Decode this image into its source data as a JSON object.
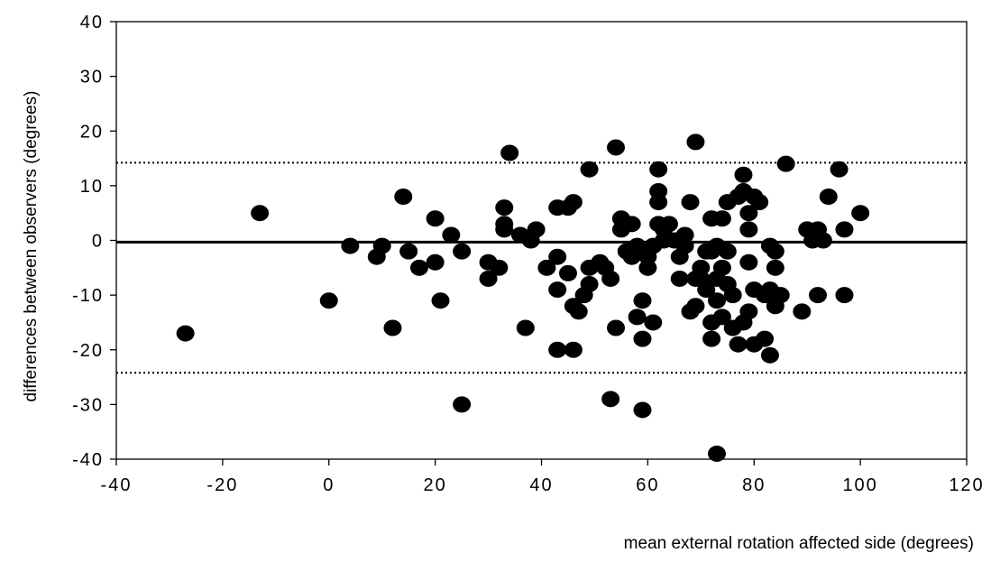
{
  "chart_data": {
    "type": "scatter",
    "xlabel": "mean external rotation affected side (degrees)",
    "ylabel": "differences between observers (degrees)",
    "xlim": [
      -40,
      120
    ],
    "ylim": [
      -40,
      40
    ],
    "x_ticks": [
      -40,
      -20,
      0,
      20,
      40,
      60,
      80,
      100,
      120
    ],
    "y_ticks": [
      -40,
      -30,
      -20,
      -10,
      0,
      10,
      20,
      30,
      40
    ],
    "x_tick_labels": [
      "-40",
      "-20",
      "0",
      "20",
      "40",
      "60",
      "80",
      "100",
      "120"
    ],
    "y_tick_labels": [
      "-40",
      "-30",
      "-20",
      "-10",
      "0",
      "10",
      "20",
      "30",
      "40"
    ],
    "grid": false,
    "legend": "none",
    "mean_line": -0.3,
    "limits_of_agreement": [
      14.2,
      -24.2
    ],
    "marker_color": "#000000",
    "points": [
      [
        -27,
        -17
      ],
      [
        -13,
        5
      ],
      [
        0,
        -11
      ],
      [
        4,
        -1
      ],
      [
        9,
        -3
      ],
      [
        10,
        -1
      ],
      [
        12,
        -16
      ],
      [
        14,
        8
      ],
      [
        15,
        -2
      ],
      [
        17,
        -5
      ],
      [
        20,
        4
      ],
      [
        20,
        -4
      ],
      [
        21,
        -11
      ],
      [
        23,
        1
      ],
      [
        25,
        -2
      ],
      [
        25,
        -30
      ],
      [
        30,
        -4
      ],
      [
        30,
        -7
      ],
      [
        32,
        -5
      ],
      [
        33,
        6
      ],
      [
        33,
        3
      ],
      [
        33,
        2
      ],
      [
        34,
        16
      ],
      [
        36,
        1
      ],
      [
        37,
        -16
      ],
      [
        38,
        0
      ],
      [
        39,
        2
      ],
      [
        41,
        -5
      ],
      [
        43,
        6
      ],
      [
        43,
        -3
      ],
      [
        43,
        -9
      ],
      [
        43,
        -20
      ],
      [
        45,
        6
      ],
      [
        45,
        -6
      ],
      [
        46,
        -20
      ],
      [
        46,
        7
      ],
      [
        46,
        -12
      ],
      [
        47,
        -13
      ],
      [
        48,
        -10
      ],
      [
        49,
        13
      ],
      [
        49,
        -8
      ],
      [
        49,
        -5
      ],
      [
        51,
        -4
      ],
      [
        52,
        -5
      ],
      [
        53,
        -29
      ],
      [
        53,
        -7
      ],
      [
        54,
        -16
      ],
      [
        54,
        17
      ],
      [
        55,
        4
      ],
      [
        55,
        2
      ],
      [
        56,
        -2
      ],
      [
        57,
        -3
      ],
      [
        57,
        3
      ],
      [
        58,
        -14
      ],
      [
        58,
        -1
      ],
      [
        59,
        -11
      ],
      [
        59,
        -18
      ],
      [
        59,
        -31
      ],
      [
        60,
        -3
      ],
      [
        60,
        -5
      ],
      [
        61,
        -15
      ],
      [
        61,
        -1
      ],
      [
        62,
        13
      ],
      [
        62,
        9
      ],
      [
        62,
        7
      ],
      [
        62,
        3
      ],
      [
        63,
        0
      ],
      [
        63,
        2
      ],
      [
        64,
        3
      ],
      [
        65,
        0
      ],
      [
        66,
        -7
      ],
      [
        66,
        -3
      ],
      [
        67,
        1
      ],
      [
        67,
        -1
      ],
      [
        68,
        -13
      ],
      [
        68,
        7
      ],
      [
        69,
        -7
      ],
      [
        69,
        -12
      ],
      [
        69,
        18
      ],
      [
        70,
        -5
      ],
      [
        70,
        -7
      ],
      [
        71,
        -2
      ],
      [
        71,
        -9
      ],
      [
        72,
        4
      ],
      [
        72,
        -2
      ],
      [
        72,
        -15
      ],
      [
        72,
        -18
      ],
      [
        73,
        -7
      ],
      [
        73,
        -11
      ],
      [
        73,
        -1
      ],
      [
        73,
        -39
      ],
      [
        74,
        -14
      ],
      [
        74,
        4
      ],
      [
        74,
        -5
      ],
      [
        75,
        -8
      ],
      [
        75,
        7
      ],
      [
        75,
        -2
      ],
      [
        76,
        -16
      ],
      [
        76,
        -10
      ],
      [
        77,
        8
      ],
      [
        77,
        -19
      ],
      [
        78,
        12
      ],
      [
        78,
        9
      ],
      [
        78,
        -15
      ],
      [
        79,
        -13
      ],
      [
        79,
        -4
      ],
      [
        79,
        2
      ],
      [
        79,
        5
      ],
      [
        80,
        -19
      ],
      [
        80,
        -9
      ],
      [
        80,
        8
      ],
      [
        81,
        7
      ],
      [
        82,
        -18
      ],
      [
        82,
        -10
      ],
      [
        83,
        -1
      ],
      [
        83,
        -21
      ],
      [
        83,
        -9
      ],
      [
        84,
        -12
      ],
      [
        84,
        -11
      ],
      [
        84,
        -5
      ],
      [
        84,
        -2
      ],
      [
        85,
        -10
      ],
      [
        86,
        14
      ],
      [
        89,
        -13
      ],
      [
        90,
        2
      ],
      [
        91,
        0
      ],
      [
        92,
        2
      ],
      [
        92,
        -10
      ],
      [
        93,
        0
      ],
      [
        94,
        8
      ],
      [
        96,
        13
      ],
      [
        97,
        2
      ],
      [
        97,
        -10
      ],
      [
        100,
        5
      ]
    ]
  }
}
